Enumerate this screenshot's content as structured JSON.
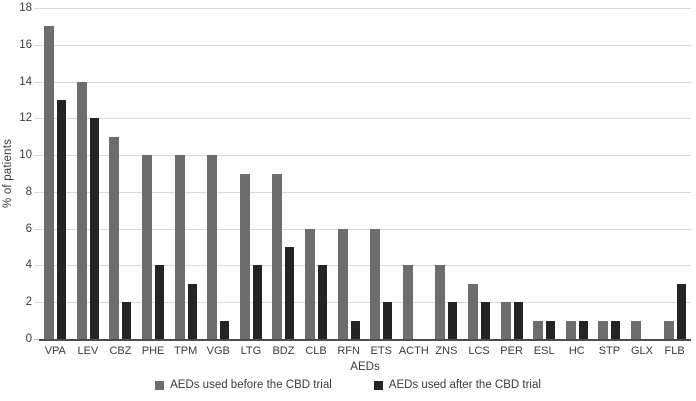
{
  "chart_data": {
    "type": "bar",
    "title": "",
    "xlabel": "AEDs",
    "ylabel": "% of patients",
    "ylim": [
      0,
      18
    ],
    "ytick_step": 2,
    "grid": true,
    "legend_position": "bottom",
    "categories": [
      "VPA",
      "LEV",
      "CBZ",
      "PHE",
      "TPM",
      "VGB",
      "LTG",
      "BDZ",
      "CLB",
      "RFN",
      "ETS",
      "ACTH",
      "ZNS",
      "LCS",
      "PER",
      "ESL",
      "HC",
      "STP",
      "GLX",
      "FLB"
    ],
    "series": [
      {
        "name": "AEDs used before the CBD trial",
        "color": "#6d6d6d",
        "values": [
          17,
          14,
          11,
          10,
          10,
          10,
          9,
          9,
          6,
          6,
          6,
          4,
          4,
          3,
          2,
          1,
          1,
          1,
          1,
          1
        ]
      },
      {
        "name": "AEDs used after the CBD trial",
        "color": "#242424",
        "values": [
          13,
          12,
          2,
          4,
          3,
          1,
          4,
          5,
          4,
          1,
          2,
          0,
          2,
          2,
          2,
          1,
          1,
          1,
          0,
          3
        ]
      }
    ],
    "colors": {
      "gridline": "#d9d9d9",
      "axis_line": "#4d4d4d",
      "text": "#3b3b3b"
    }
  }
}
